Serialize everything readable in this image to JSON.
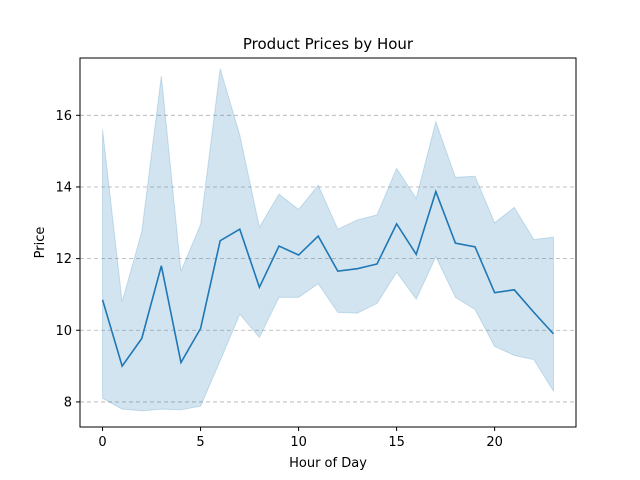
{
  "chart_data": {
    "type": "line",
    "title": "Product Prices by Hour",
    "xlabel": "Hour of Day",
    "ylabel": "Price",
    "xlim": [
      -1.15,
      24.15
    ],
    "ylim": [
      7.3,
      17.6
    ],
    "xticks": [
      0,
      5,
      10,
      15,
      20
    ],
    "yticks": [
      8,
      10,
      12,
      14,
      16
    ],
    "grid": "horizontal dashed",
    "colors": {
      "line": "#1f77b4",
      "band": "#1f77b4",
      "grid": "#b0b0b0"
    },
    "series": [
      {
        "x": [
          0,
          1,
          2,
          3,
          4,
          5,
          6,
          7,
          8,
          9,
          10,
          11,
          12,
          13,
          14,
          15,
          16,
          17,
          18,
          19,
          20,
          21,
          22,
          23
        ],
        "mean": [
          10.85,
          9.0,
          9.77,
          11.8,
          9.1,
          10.05,
          12.5,
          12.82,
          11.2,
          12.35,
          12.1,
          12.63,
          11.65,
          11.72,
          11.85,
          12.97,
          12.12,
          13.87,
          12.43,
          12.33,
          11.05,
          11.13,
          10.5,
          9.9
        ],
        "lower": [
          8.1,
          7.8,
          7.75,
          7.8,
          7.78,
          7.88,
          9.15,
          10.45,
          9.8,
          10.92,
          10.92,
          11.3,
          10.5,
          10.48,
          10.75,
          11.62,
          10.87,
          12.05,
          10.92,
          10.58,
          9.55,
          9.3,
          9.18,
          8.3
        ],
        "upper": [
          15.6,
          10.8,
          12.75,
          17.1,
          11.65,
          12.95,
          17.3,
          15.45,
          12.88,
          13.8,
          13.37,
          14.05,
          12.82,
          13.08,
          13.22,
          14.52,
          13.68,
          15.82,
          14.27,
          14.3,
          13.0,
          13.43,
          12.53,
          12.6
        ]
      }
    ]
  }
}
